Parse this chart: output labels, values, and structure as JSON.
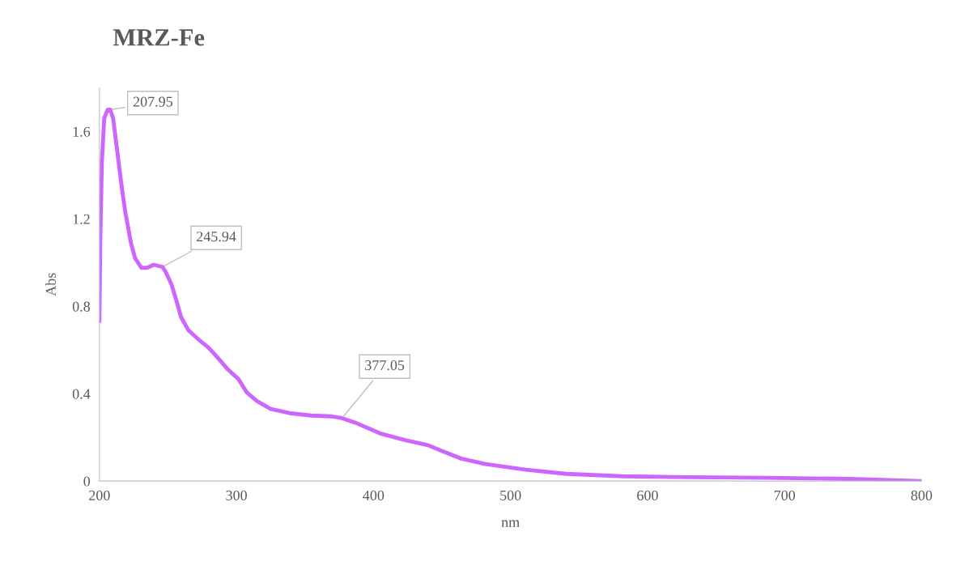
{
  "chart_data": {
    "type": "line",
    "title": "MRZ-Fe",
    "xlabel": "nm",
    "ylabel": "Abs",
    "x": [
      200,
      200.6,
      201.8,
      203.5,
      206,
      207.95,
      210,
      213,
      216,
      218.9,
      223,
      226,
      230.7,
      234.8,
      239.6,
      245.94,
      248.4,
      252.6,
      256,
      259.6,
      265,
      272,
      279.7,
      285.6,
      293.9,
      301.6,
      307.5,
      315,
      325,
      340,
      354.7,
      369.5,
      377.05,
      387.2,
      404.9,
      422.6,
      440.4,
      449.2,
      464,
      481.7,
      511.2,
      540.7,
      582,
      629,
      688,
      747,
      800
    ],
    "series": [
      {
        "color": "#cc66ff",
        "values": [
          0.73,
          1.09,
          1.46,
          1.66,
          1.7,
          1.7,
          1.66,
          1.51,
          1.36,
          1.23,
          1.09,
          1.02,
          0.976,
          0.976,
          0.99,
          0.98,
          0.957,
          0.9,
          0.83,
          0.75,
          0.69,
          0.65,
          0.61,
          0.57,
          0.51,
          0.466,
          0.406,
          0.366,
          0.33,
          0.31,
          0.3,
          0.296,
          0.288,
          0.266,
          0.218,
          0.188,
          0.163,
          0.14,
          0.103,
          0.078,
          0.052,
          0.033,
          0.022,
          0.018,
          0.015,
          0.01,
          0.0
        ]
      }
    ],
    "annotations": [
      {
        "text": "207.95",
        "x": 207.95,
        "y": 1.7
      },
      {
        "text": "245.94",
        "x": 245.94,
        "y": 0.98
      },
      {
        "text": "377.05",
        "x": 377.05,
        "y": 0.288
      }
    ],
    "xlim": [
      200,
      800
    ],
    "xticks": [
      200,
      300,
      400,
      500,
      600,
      700,
      800
    ],
    "ylim": [
      0,
      1.8
    ],
    "yticks": [
      0,
      0.4,
      0.8,
      1.2,
      1.6
    ],
    "grid": false,
    "legend": false
  }
}
